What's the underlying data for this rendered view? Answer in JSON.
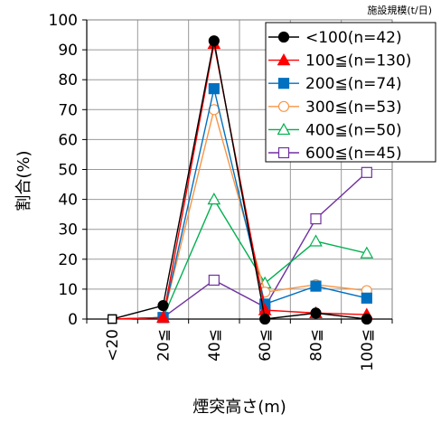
{
  "chart_data": {
    "type": "line",
    "xlabel": "煙突高さ(m)",
    "ylabel": "割合(%)",
    "ylim": [
      0,
      100
    ],
    "yticks": [
      "0",
      "10",
      "20",
      "30",
      "40",
      "50",
      "60",
      "70",
      "80",
      "90",
      "100"
    ],
    "categories": [
      "<20",
      "20≦",
      "40≦",
      "60≦",
      "80≦",
      "100≦"
    ],
    "grid": true,
    "legend_title": "施設規模(t/日)",
    "legend_position": "top-right",
    "series": [
      {
        "name": "<100(n=42)",
        "values": [
          0,
          4.5,
          93,
          0,
          2,
          0
        ],
        "color": "#000000",
        "marker": "circle-filled"
      },
      {
        "name": "100≦(n=130)",
        "values": [
          0,
          0.5,
          92,
          3,
          2,
          1.5
        ],
        "color": "#ff0000",
        "marker": "triangle-filled"
      },
      {
        "name": "200≦(n=74)",
        "values": [
          0,
          0.5,
          77,
          5,
          11,
          7
        ],
        "color": "#0070c0",
        "marker": "square-filled"
      },
      {
        "name": "300≦(n=53)",
        "values": [
          0,
          0.5,
          70,
          9,
          11.5,
          9.5
        ],
        "color": "#f79646",
        "marker": "circle-open"
      },
      {
        "name": "400≦(n=50)",
        "values": [
          0,
          0.5,
          40,
          12,
          26,
          22
        ],
        "color": "#00b050",
        "marker": "triangle-open"
      },
      {
        "name": "600≦(n=45)",
        "values": [
          0,
          0.5,
          13,
          4,
          33.5,
          49
        ],
        "color": "#7030a0",
        "marker": "square-open"
      }
    ]
  }
}
